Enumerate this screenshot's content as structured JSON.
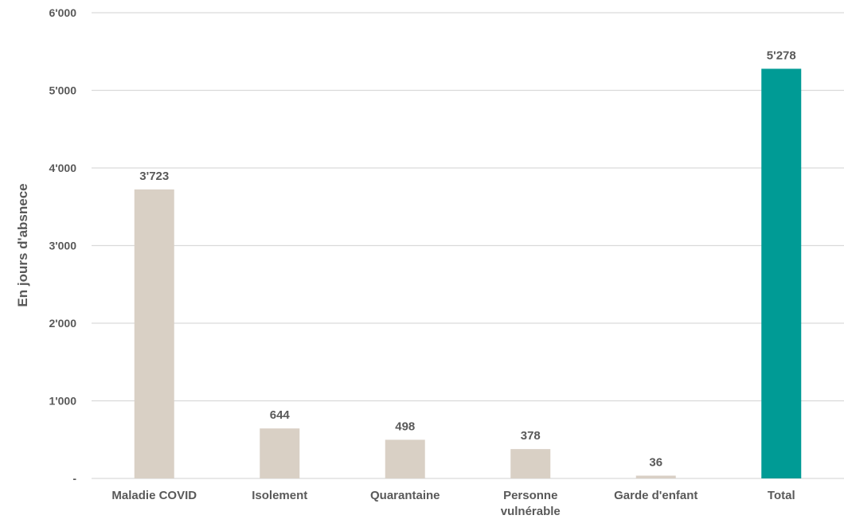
{
  "chart_data": {
    "type": "bar",
    "title": "",
    "xlabel": "",
    "ylabel": "En jours d'absnece",
    "categories": [
      [
        "Maladie COVID"
      ],
      [
        "Isolement"
      ],
      [
        "Quarantaine"
      ],
      [
        "Personne",
        "vulnérable"
      ],
      [
        "Garde d'enfant"
      ],
      [
        "Total"
      ]
    ],
    "values": [
      3723,
      644,
      498,
      378,
      36,
      5278
    ],
    "value_labels": [
      "3'723",
      "644",
      "498",
      "378",
      "36",
      "5'278"
    ],
    "ylim": [
      0,
      6000
    ],
    "yticks": [
      0,
      1000,
      2000,
      3000,
      4000,
      5000,
      6000
    ],
    "ytick_labels": [
      "-",
      "1'000",
      "2'000",
      "3'000",
      "4'000",
      "5'000",
      "6'000"
    ],
    "grid": true,
    "colors": {
      "default_bar": "#d9d0c5",
      "highlight_bar": "#009b95",
      "grid": "#d9d9d9",
      "text": "#595959"
    },
    "highlight_index": 5
  }
}
